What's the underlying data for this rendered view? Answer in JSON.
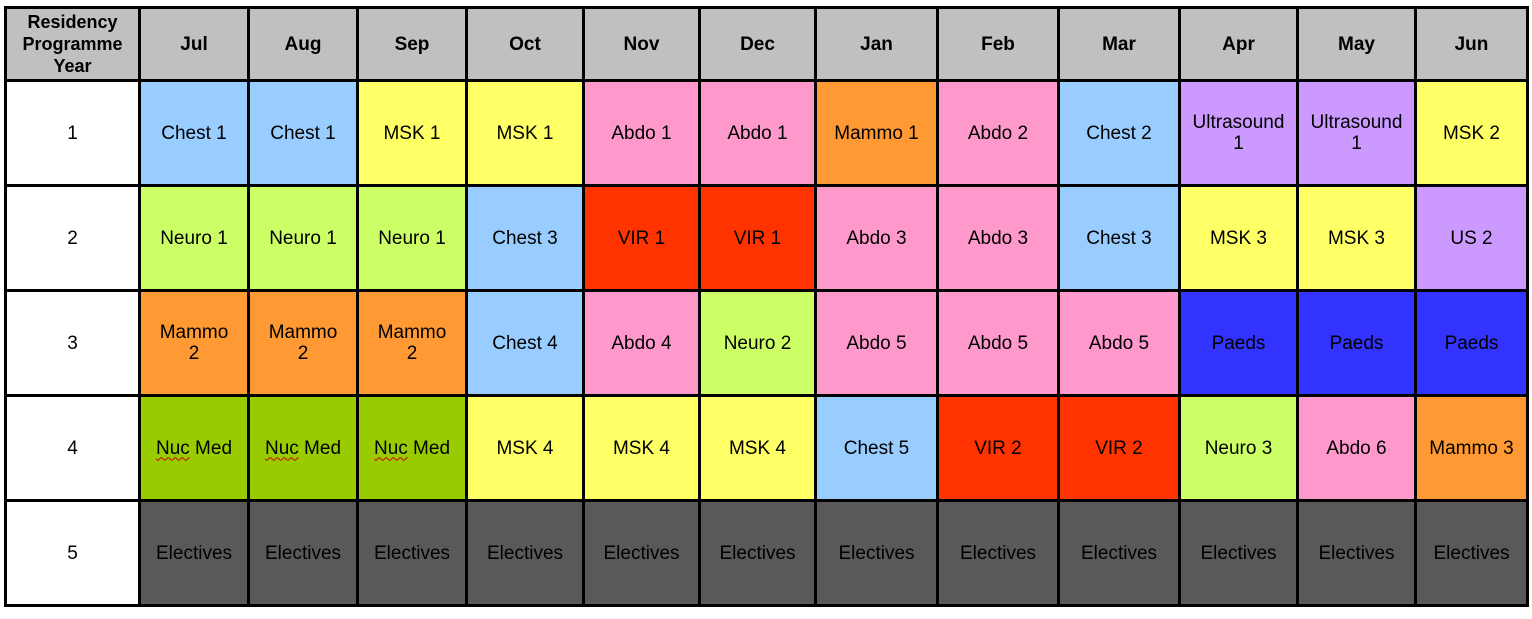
{
  "header": {
    "corner": [
      "Residency",
      "Programme",
      "Year"
    ],
    "months": [
      "Jul",
      "Aug",
      "Sep",
      "Oct",
      "Nov",
      "Dec",
      "Jan",
      "Feb",
      "Mar",
      "Apr",
      "May",
      "Jun"
    ]
  },
  "rows": [
    {
      "year": "1",
      "cells": [
        {
          "lines": [
            "Chest 1"
          ],
          "cat": "chest"
        },
        {
          "lines": [
            "Chest 1"
          ],
          "cat": "chest"
        },
        {
          "lines": [
            "MSK 1"
          ],
          "cat": "msk"
        },
        {
          "lines": [
            "MSK 1"
          ],
          "cat": "msk"
        },
        {
          "lines": [
            "Abdo 1"
          ],
          "cat": "abdo"
        },
        {
          "lines": [
            "Abdo 1"
          ],
          "cat": "abdo"
        },
        {
          "lines": [
            "Mammo 1"
          ],
          "cat": "mammo"
        },
        {
          "lines": [
            "Abdo 2"
          ],
          "cat": "abdo"
        },
        {
          "lines": [
            "Chest 2"
          ],
          "cat": "chest"
        },
        {
          "lines": [
            "Ultrasound",
            "1"
          ],
          "cat": "us"
        },
        {
          "lines": [
            "Ultrasound",
            "1"
          ],
          "cat": "us"
        },
        {
          "lines": [
            "MSK 2"
          ],
          "cat": "msk"
        }
      ]
    },
    {
      "year": "2",
      "cells": [
        {
          "lines": [
            "Neuro 1"
          ],
          "cat": "neuro"
        },
        {
          "lines": [
            "Neuro 1"
          ],
          "cat": "neuro"
        },
        {
          "lines": [
            "Neuro 1"
          ],
          "cat": "neuro"
        },
        {
          "lines": [
            "Chest 3"
          ],
          "cat": "chest"
        },
        {
          "lines": [
            "VIR 1"
          ],
          "cat": "vir"
        },
        {
          "lines": [
            "VIR 1"
          ],
          "cat": "vir"
        },
        {
          "lines": [
            "Abdo 3"
          ],
          "cat": "abdo",
          "align": "left"
        },
        {
          "lines": [
            "Abdo 3"
          ],
          "cat": "abdo"
        },
        {
          "lines": [
            "Chest 3"
          ],
          "cat": "chest"
        },
        {
          "lines": [
            "MSK 3"
          ],
          "cat": "msk"
        },
        {
          "lines": [
            "MSK 3"
          ],
          "cat": "msk"
        },
        {
          "lines": [
            "US 2"
          ],
          "cat": "us"
        }
      ]
    },
    {
      "year": "3",
      "cells": [
        {
          "lines": [
            "Mammo",
            "2"
          ],
          "cat": "mammo"
        },
        {
          "lines": [
            "Mammo",
            "2"
          ],
          "cat": "mammo"
        },
        {
          "lines": [
            "Mammo",
            "2"
          ],
          "cat": "mammo"
        },
        {
          "lines": [
            "Chest 4"
          ],
          "cat": "chest"
        },
        {
          "lines": [
            "Abdo 4"
          ],
          "cat": "abdo"
        },
        {
          "lines": [
            "Neuro 2"
          ],
          "cat": "neuro"
        },
        {
          "lines": [
            "Abdo 5"
          ],
          "cat": "abdo"
        },
        {
          "lines": [
            "Abdo 5"
          ],
          "cat": "abdo"
        },
        {
          "lines": [
            "Abdo 5"
          ],
          "cat": "abdo"
        },
        {
          "lines": [
            "Paeds"
          ],
          "cat": "paeds"
        },
        {
          "lines": [
            "Paeds"
          ],
          "cat": "paeds"
        },
        {
          "lines": [
            "Paeds"
          ],
          "cat": "paeds"
        }
      ]
    },
    {
      "year": "4",
      "cells": [
        {
          "lines": [
            "Nuc Med"
          ],
          "cat": "nuc",
          "squiggle": "Nuc"
        },
        {
          "lines": [
            "Nuc Med"
          ],
          "cat": "nuc",
          "squiggle": "Nuc"
        },
        {
          "lines": [
            "Nuc Med"
          ],
          "cat": "nuc",
          "squiggle": "Nuc"
        },
        {
          "lines": [
            "MSK 4"
          ],
          "cat": "msk"
        },
        {
          "lines": [
            "MSK 4"
          ],
          "cat": "msk"
        },
        {
          "lines": [
            "MSK 4"
          ],
          "cat": "msk"
        },
        {
          "lines": [
            "Chest 5"
          ],
          "cat": "chest"
        },
        {
          "lines": [
            "VIR 2"
          ],
          "cat": "vir"
        },
        {
          "lines": [
            "VIR 2"
          ],
          "cat": "vir"
        },
        {
          "lines": [
            "Neuro 3"
          ],
          "cat": "neuro"
        },
        {
          "lines": [
            "Abdo 6"
          ],
          "cat": "abdo"
        },
        {
          "lines": [
            "Mammo 3"
          ],
          "cat": "mammo"
        }
      ]
    },
    {
      "year": "5",
      "cells": [
        {
          "lines": [
            "Electives"
          ],
          "cat": "elec"
        },
        {
          "lines": [
            "Electives"
          ],
          "cat": "elec"
        },
        {
          "lines": [
            "Electives"
          ],
          "cat": "elec"
        },
        {
          "lines": [
            "Electives"
          ],
          "cat": "elec"
        },
        {
          "lines": [
            "Electives"
          ],
          "cat": "elec"
        },
        {
          "lines": [
            "Electives"
          ],
          "cat": "elec"
        },
        {
          "lines": [
            "Electives"
          ],
          "cat": "elec"
        },
        {
          "lines": [
            "Electives"
          ],
          "cat": "elec"
        },
        {
          "lines": [
            "Electives"
          ],
          "cat": "elec"
        },
        {
          "lines": [
            "Electives"
          ],
          "cat": "elec"
        },
        {
          "lines": [
            "Electives"
          ],
          "cat": "elec"
        },
        {
          "lines": [
            "Electives"
          ],
          "cat": "elec"
        }
      ]
    }
  ],
  "colors": {
    "chest": "#99ccff",
    "msk": "#ffff66",
    "abdo": "#ff99cc",
    "mammo": "#ff9933",
    "us": "#cc99ff",
    "neuro": "#ccff66",
    "vir": "#ff3300",
    "paeds": "#3333ff",
    "nuc": "#99cc00",
    "elec": "#595959",
    "header": "#c0c0c0"
  }
}
